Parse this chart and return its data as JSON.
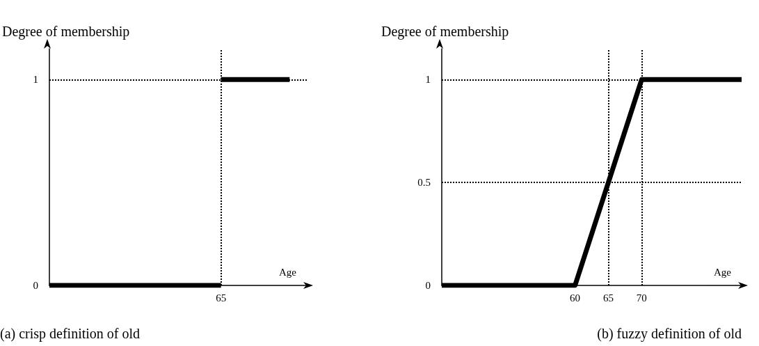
{
  "chart_data": [
    {
      "type": "line",
      "xlabel": "Age",
      "ylabel": "Degree of membership",
      "annotations": [
        "(a) crisp definition of old"
      ],
      "ylim": [
        0,
        1.15
      ],
      "yticks": [
        0,
        1
      ],
      "marker": "none",
      "line_style": "solid",
      "categories": [
        null,
        null,
        null,
        null,
        null,
        null,
        null,
        null,
        null,
        null,
        "65",
        null,
        null,
        null,
        null,
        null
      ],
      "series": [
        {
          "color": "#000000",
          "values": [
            0,
            0,
            0,
            0,
            0,
            0,
            0,
            0,
            0,
            0,
            0,
            null,
            null,
            null,
            null,
            null
          ]
        },
        {
          "color": "#000000",
          "values": [
            null,
            null,
            null,
            null,
            null,
            null,
            null,
            null,
            null,
            null,
            1,
            1,
            1,
            1,
            1,
            null
          ]
        }
      ],
      "ref_lines": [
        {
          "axis": "y",
          "value": 1,
          "line_style": "dotted",
          "color": "#000000"
        },
        {
          "axis": "x",
          "value": "65",
          "line_style": "dotted",
          "color": "#000000"
        }
      ]
    },
    {
      "type": "line",
      "xlabel": "Age",
      "ylabel": "Degree of membership",
      "annotations": [
        "(b) fuzzy definition of old"
      ],
      "xlim": [
        40,
        85
      ],
      "xticks": [
        60,
        65,
        70
      ],
      "ylim": [
        0,
        1.15
      ],
      "yticks": [
        0,
        0.5,
        1
      ],
      "marker": "none",
      "line_style": "solid",
      "series": [
        {
          "color": "#000000",
          "x": [
            40,
            60,
            70,
            85
          ],
          "values": [
            0,
            0,
            1,
            1
          ]
        }
      ],
      "ref_lines": [
        {
          "axis": "y",
          "value": 1,
          "line_style": "dotted",
          "color": "#000000"
        },
        {
          "axis": "y",
          "value": 0.5,
          "line_style": "dotted",
          "color": "#000000"
        },
        {
          "axis": "x",
          "value": 65,
          "line_style": "dotted",
          "color": "#000000"
        },
        {
          "axis": "x",
          "value": 70,
          "line_style": "dotted",
          "color": "#000000"
        }
      ]
    }
  ]
}
